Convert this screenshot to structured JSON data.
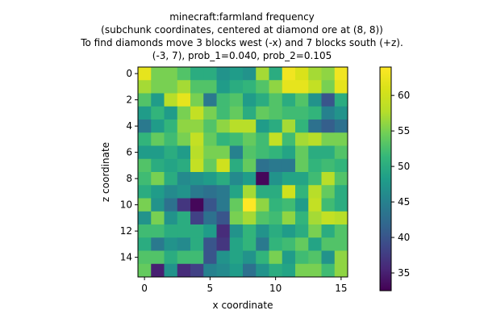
{
  "chart_data": {
    "type": "heatmap",
    "title_lines": [
      "minecraft:farmland frequency",
      "(subchunk coordinates, centered at diamond ore at (8, 8))",
      "To find diamonds move 3 blocks west (-x) and 7 blocks south (+z).",
      "(-3, 7), prob_1=0.040, prob_2=0.105"
    ],
    "xlabel": "x coordinate",
    "ylabel": "z coordinate",
    "x_ticks": [
      0,
      5,
      10,
      15
    ],
    "y_ticks": [
      0,
      2,
      4,
      6,
      8,
      10,
      12,
      14
    ],
    "colorbar_ticks": [
      35,
      40,
      45,
      50,
      55,
      60
    ],
    "vmin": 32.5,
    "vmax": 64,
    "colormap": "viridis",
    "grid_size": 16,
    "values": [
      [
        62,
        55,
        55,
        53,
        50,
        50,
        47,
        48,
        47,
        57,
        50,
        63,
        61,
        57,
        56,
        63
      ],
      [
        57,
        55,
        55,
        57,
        53,
        53,
        48,
        50,
        51,
        53,
        56,
        62,
        62,
        59,
        55,
        62
      ],
      [
        53,
        48,
        58,
        62,
        55,
        44,
        52,
        53,
        48,
        50,
        53,
        50,
        53,
        47,
        40,
        50
      ],
      [
        48,
        51,
        48,
        55,
        59,
        55,
        52,
        54,
        50,
        54,
        53,
        52,
        52,
        51,
        45,
        47
      ],
      [
        44,
        48,
        51,
        56,
        56,
        53,
        56,
        58,
        58,
        48,
        50,
        57,
        51,
        43,
        41,
        43
      ],
      [
        51,
        54,
        52,
        55,
        59,
        54,
        51,
        52,
        54,
        52,
        59,
        52,
        57,
        58,
        55,
        55
      ],
      [
        48,
        48,
        50,
        48,
        58,
        55,
        55,
        45,
        53,
        52,
        51,
        49,
        54,
        50,
        50,
        53
      ],
      [
        53,
        50,
        49,
        50,
        59,
        54,
        60,
        50,
        54,
        43,
        44,
        44,
        54,
        51,
        52,
        51
      ],
      [
        52,
        55,
        50,
        46,
        47,
        48,
        50,
        46,
        48,
        33,
        47,
        49,
        49,
        52,
        58,
        53
      ],
      [
        50,
        48,
        46,
        47,
        44,
        43,
        44,
        49,
        57,
        50,
        50,
        60,
        51,
        58,
        54,
        50
      ],
      [
        55,
        47,
        43,
        37,
        33,
        40,
        44,
        54,
        64,
        56,
        51,
        52,
        48,
        59,
        52,
        50
      ],
      [
        47,
        55,
        47,
        50,
        38,
        43,
        40,
        55,
        57,
        53,
        52,
        56,
        51,
        57,
        59,
        58
      ],
      [
        52,
        52,
        50,
        50,
        50,
        48,
        36,
        47,
        51,
        47,
        50,
        48,
        50,
        55,
        50,
        53
      ],
      [
        50,
        44,
        47,
        46,
        50,
        40,
        37,
        49,
        51,
        44,
        51,
        52,
        54,
        49,
        53,
        53
      ],
      [
        53,
        53,
        50,
        52,
        52,
        40,
        47,
        49,
        47,
        51,
        55,
        48,
        52,
        53,
        47,
        56
      ],
      [
        54,
        35,
        47,
        36,
        38,
        45,
        46,
        48,
        43,
        47,
        50,
        49,
        55,
        55,
        52,
        56
      ]
    ]
  }
}
